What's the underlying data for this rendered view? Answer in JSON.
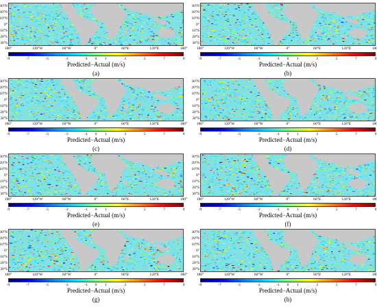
{
  "figure": {
    "lat_labels": [
      "30°N",
      "20°N",
      "10°N",
      "0°",
      "10°S",
      "20°S",
      "30°S"
    ],
    "lon_labels": [
      "180°",
      "120°W",
      "60°W",
      "0°",
      "60°E",
      "120°E",
      "180°"
    ],
    "colorbar": {
      "ticks": [
        "-9",
        "-7",
        "-5",
        "-3",
        "-1",
        "0",
        "1",
        "3",
        "5",
        "7",
        "9"
      ],
      "range": [
        -9,
        9
      ],
      "title": "Predicted−Actual (m/s)",
      "colors": [
        "#000080",
        "#0000ff",
        "#0080ff",
        "#00e0ff",
        "#80ff80",
        "#ffff00",
        "#ff8000",
        "#ff0000",
        "#800000"
      ]
    },
    "land_color": "#c8c8c8",
    "panels": [
      {
        "label": "(a)"
      },
      {
        "label": "(b)"
      },
      {
        "label": "(c)"
      },
      {
        "label": "(d)"
      },
      {
        "label": "(e)"
      },
      {
        "label": "(f)"
      },
      {
        "label": "(g)"
      },
      {
        "label": "(h)"
      }
    ]
  }
}
